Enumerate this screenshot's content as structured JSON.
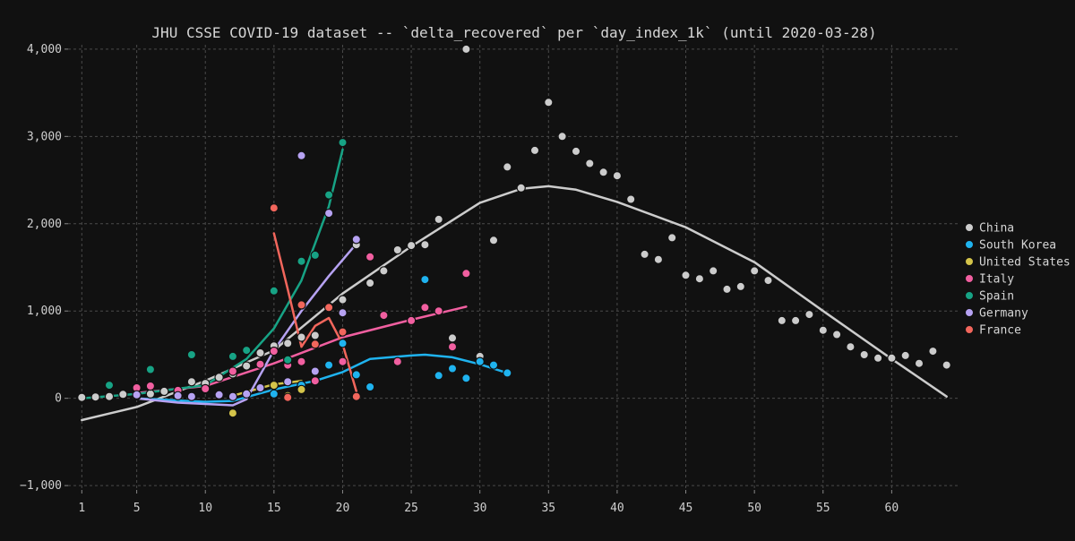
{
  "chart_data": {
    "type": "scatter",
    "title": "JHU CSSE COVID-19 dataset -- `delta_recovered` per `day_index_1k` (until 2020-03-28)",
    "xlabel": "",
    "ylabel": "",
    "xlim": [
      0,
      65
    ],
    "ylim": [
      -1050,
      4050
    ],
    "x_ticks": [
      1,
      5,
      10,
      15,
      20,
      25,
      30,
      35,
      40,
      45,
      50,
      55,
      60
    ],
    "y_ticks": [
      -1000,
      0,
      1000,
      2000,
      3000,
      4000
    ],
    "y_tick_labels": [
      "−1,000",
      "0",
      "1,000",
      "2,000",
      "3,000",
      "4,000"
    ],
    "grid": true,
    "legend_position": "right",
    "series": [
      {
        "name": "China",
        "color": "#cccccc",
        "points": [
          [
            1,
            10
          ],
          [
            2,
            15
          ],
          [
            3,
            20
          ],
          [
            4,
            45
          ],
          [
            5,
            30
          ],
          [
            6,
            50
          ],
          [
            7,
            80
          ],
          [
            8,
            50
          ],
          [
            9,
            190
          ],
          [
            10,
            170
          ],
          [
            11,
            240
          ],
          [
            12,
            280
          ],
          [
            13,
            370
          ],
          [
            14,
            520
          ],
          [
            15,
            600
          ],
          [
            16,
            630
          ],
          [
            17,
            700
          ],
          [
            18,
            720
          ],
          [
            19,
            1050
          ],
          [
            20,
            1130
          ],
          [
            21,
            1760
          ],
          [
            22,
            1320
          ],
          [
            23,
            1460
          ],
          [
            24,
            1700
          ],
          [
            25,
            1750
          ],
          [
            26,
            1760
          ],
          [
            27,
            2050
          ],
          [
            28,
            690
          ],
          [
            29,
            4000
          ],
          [
            30,
            480
          ],
          [
            31,
            1810
          ],
          [
            32,
            2650
          ],
          [
            33,
            2410
          ],
          [
            34,
            2840
          ],
          [
            35,
            3390
          ],
          [
            36,
            3000
          ],
          [
            37,
            2830
          ],
          [
            38,
            2690
          ],
          [
            39,
            2590
          ],
          [
            40,
            2550
          ],
          [
            41,
            2280
          ],
          [
            42,
            1650
          ],
          [
            43,
            1590
          ],
          [
            44,
            1840
          ],
          [
            45,
            1410
          ],
          [
            46,
            1370
          ],
          [
            47,
            1460
          ],
          [
            48,
            1250
          ],
          [
            49,
            1280
          ],
          [
            50,
            1460
          ],
          [
            51,
            1350
          ],
          [
            52,
            890
          ],
          [
            53,
            890
          ],
          [
            54,
            960
          ],
          [
            55,
            780
          ],
          [
            56,
            730
          ],
          [
            57,
            590
          ],
          [
            58,
            500
          ],
          [
            59,
            460
          ],
          [
            60,
            460
          ],
          [
            61,
            490
          ],
          [
            62,
            400
          ],
          [
            63,
            540
          ],
          [
            64,
            380
          ]
        ],
        "trend": [
          [
            1,
            -250
          ],
          [
            5,
            -100
          ],
          [
            10,
            200
          ],
          [
            15,
            550
          ],
          [
            20,
            1200
          ],
          [
            25,
            1740
          ],
          [
            30,
            2240
          ],
          [
            33,
            2400
          ],
          [
            35,
            2430
          ],
          [
            37,
            2390
          ],
          [
            40,
            2250
          ],
          [
            45,
            1960
          ],
          [
            50,
            1560
          ],
          [
            55,
            1000
          ],
          [
            60,
            450
          ],
          [
            64,
            20
          ]
        ]
      },
      {
        "name": "South Korea",
        "color": "#1fb3ef",
        "points": [
          [
            15,
            50
          ],
          [
            16,
            40
          ],
          [
            17,
            150
          ],
          [
            18,
            200
          ],
          [
            19,
            380
          ],
          [
            20,
            630
          ],
          [
            21,
            270
          ],
          [
            22,
            130
          ],
          [
            26,
            1360
          ],
          [
            27,
            260
          ],
          [
            28,
            340
          ],
          [
            29,
            230
          ],
          [
            30,
            420
          ],
          [
            31,
            380
          ],
          [
            32,
            290
          ]
        ],
        "trend": [
          [
            5,
            0
          ],
          [
            10,
            -40
          ],
          [
            12,
            -30
          ],
          [
            15,
            100
          ],
          [
            18,
            200
          ],
          [
            20,
            300
          ],
          [
            22,
            450
          ],
          [
            25,
            490
          ],
          [
            26,
            500
          ],
          [
            28,
            470
          ],
          [
            30,
            390
          ],
          [
            32,
            290
          ]
        ]
      },
      {
        "name": "United States",
        "color": "#d4c44a",
        "points": [
          [
            12,
            -170
          ],
          [
            15,
            150
          ],
          [
            16,
            30
          ],
          [
            17,
            100
          ]
        ],
        "trend": [
          [
            12,
            30
          ],
          [
            15,
            160
          ],
          [
            17,
            200
          ]
        ]
      },
      {
        "name": "Italy",
        "color": "#f15fa0",
        "points": [
          [
            5,
            120
          ],
          [
            6,
            140
          ],
          [
            8,
            90
          ],
          [
            10,
            110
          ],
          [
            12,
            310
          ],
          [
            14,
            390
          ],
          [
            15,
            540
          ],
          [
            16,
            380
          ],
          [
            17,
            420
          ],
          [
            18,
            200
          ],
          [
            20,
            420
          ],
          [
            22,
            1620
          ],
          [
            23,
            950
          ],
          [
            24,
            420
          ],
          [
            25,
            890
          ],
          [
            26,
            1040
          ],
          [
            27,
            1000
          ],
          [
            28,
            590
          ],
          [
            29,
            1430
          ]
        ],
        "trend": [
          [
            5,
            60
          ],
          [
            10,
            140
          ],
          [
            15,
            400
          ],
          [
            20,
            700
          ],
          [
            25,
            900
          ],
          [
            29,
            1050
          ]
        ]
      },
      {
        "name": "Spain",
        "color": "#17a385",
        "points": [
          [
            3,
            150
          ],
          [
            6,
            330
          ],
          [
            9,
            500
          ],
          [
            12,
            480
          ],
          [
            13,
            550
          ],
          [
            15,
            1230
          ],
          [
            16,
            440
          ],
          [
            17,
            1570
          ],
          [
            18,
            1640
          ],
          [
            19,
            2330
          ],
          [
            20,
            2930
          ]
        ],
        "trend": [
          [
            1,
            0
          ],
          [
            5,
            50
          ],
          [
            10,
            150
          ],
          [
            13,
            450
          ],
          [
            15,
            800
          ],
          [
            17,
            1350
          ],
          [
            19,
            2200
          ],
          [
            20,
            2850
          ]
        ]
      },
      {
        "name": "Germany",
        "color": "#b6a2f2",
        "points": [
          [
            5,
            40
          ],
          [
            8,
            30
          ],
          [
            9,
            20
          ],
          [
            11,
            40
          ],
          [
            12,
            20
          ],
          [
            13,
            50
          ],
          [
            14,
            120
          ],
          [
            16,
            190
          ],
          [
            17,
            2780
          ],
          [
            18,
            310
          ],
          [
            19,
            2120
          ],
          [
            20,
            980
          ],
          [
            21,
            1820
          ]
        ],
        "trend": [
          [
            5,
            0
          ],
          [
            8,
            -50
          ],
          [
            12,
            -80
          ],
          [
            13,
            -10
          ],
          [
            15,
            550
          ],
          [
            17,
            1000
          ],
          [
            19,
            1400
          ],
          [
            21,
            1770
          ]
        ]
      },
      {
        "name": "France",
        "color": "#f2665c",
        "points": [
          [
            15,
            2180
          ],
          [
            16,
            10
          ],
          [
            17,
            1070
          ],
          [
            18,
            620
          ],
          [
            19,
            1040
          ],
          [
            20,
            760
          ],
          [
            21,
            20
          ]
        ],
        "trend": [
          [
            15,
            1890
          ],
          [
            16,
            1250
          ],
          [
            17,
            590
          ],
          [
            18,
            830
          ],
          [
            19,
            920
          ],
          [
            20,
            620
          ],
          [
            21,
            80
          ]
        ]
      }
    ]
  }
}
